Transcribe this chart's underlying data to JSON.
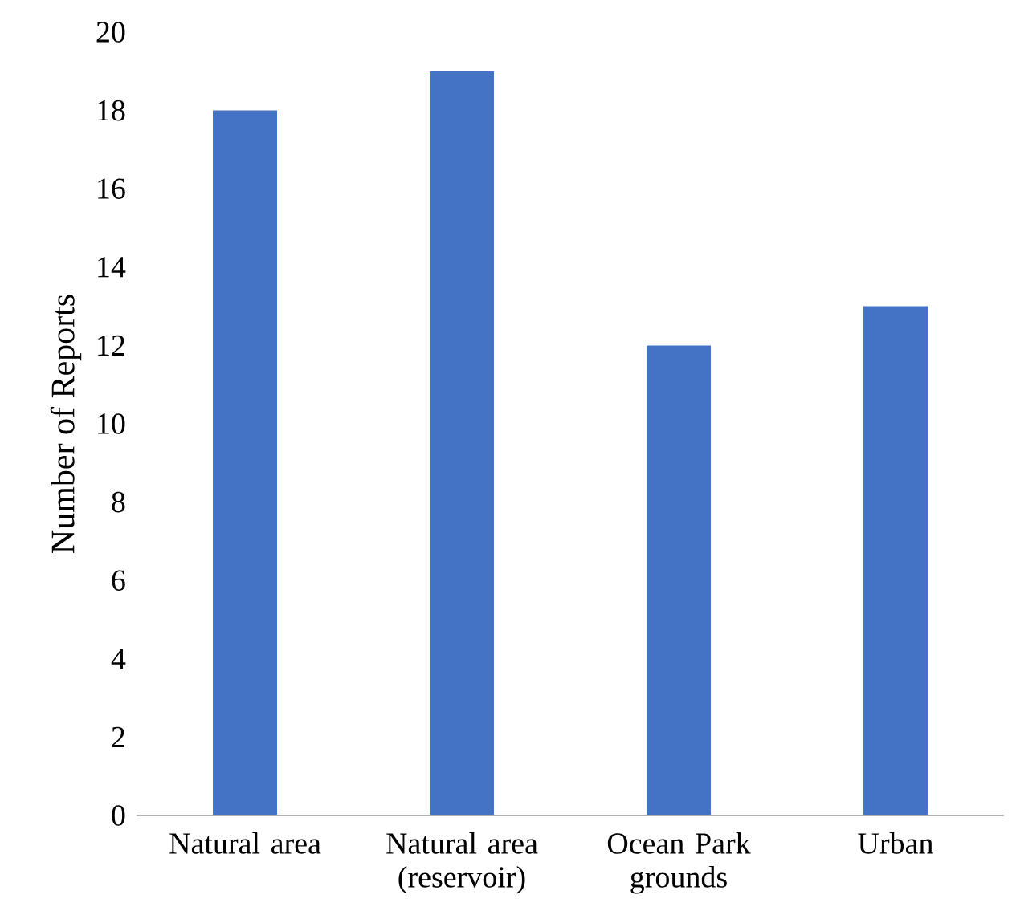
{
  "chart_data": {
    "type": "bar",
    "ylabel": "Number of Reports",
    "categories": [
      "Natural area",
      "Natural area (reservoir)",
      "Ocean Park grounds",
      "Urban"
    ],
    "values": [
      18,
      19,
      12,
      13
    ],
    "color": "#4472c4",
    "ylim": [
      0,
      20
    ],
    "yticks": [
      0,
      2,
      4,
      6,
      8,
      10,
      12,
      14,
      16,
      18,
      20
    ],
    "grid": false
  }
}
